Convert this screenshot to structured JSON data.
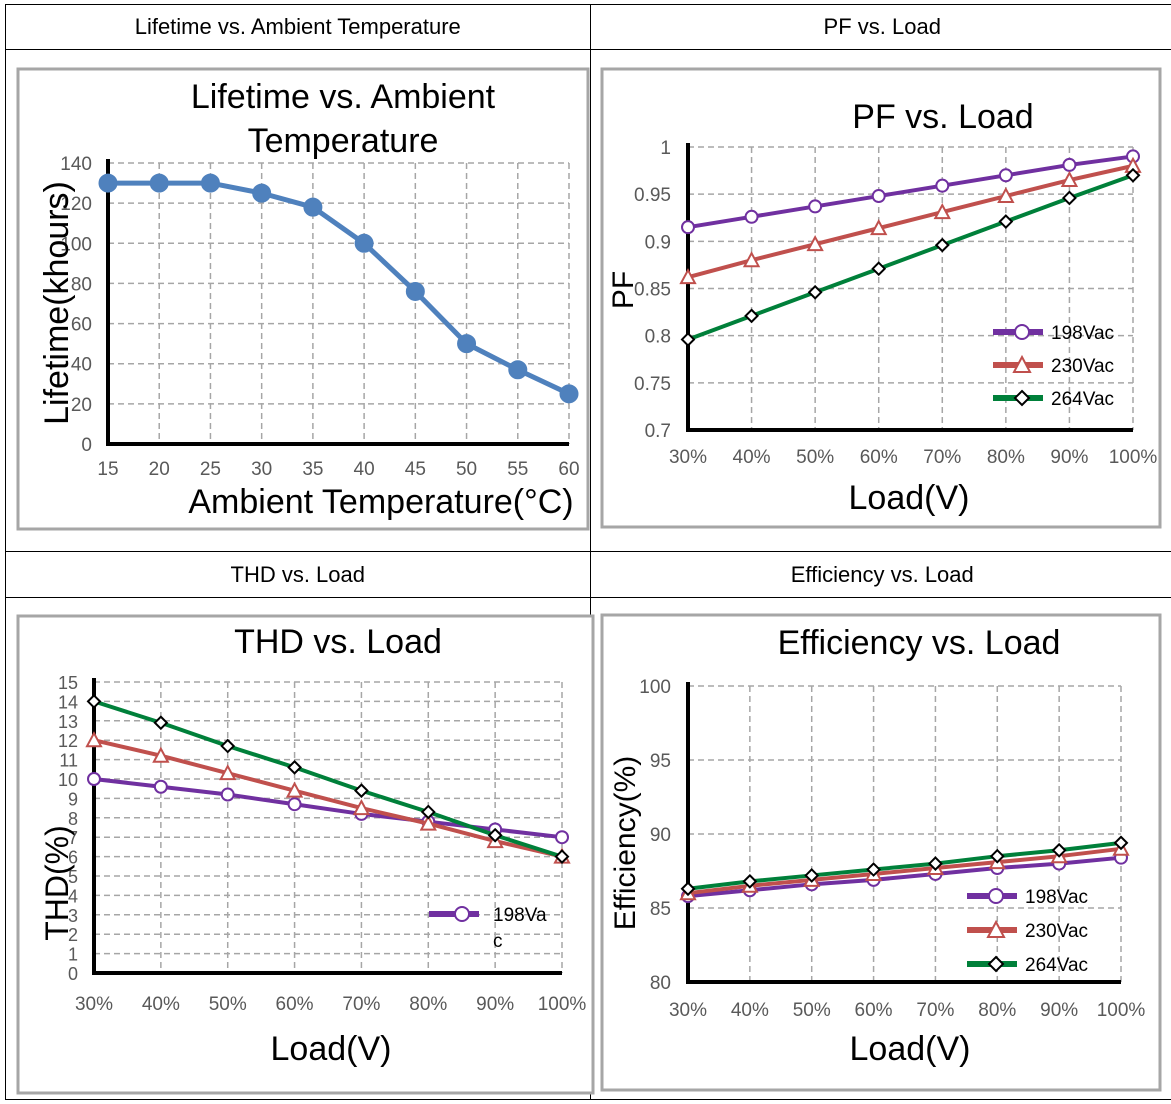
{
  "headers": {
    "lifetime": "Lifetime vs. Ambient Temperature",
    "pf": "PF vs. Load",
    "thd": "THD vs. Load",
    "efficiency": "Efficiency vs. Load"
  },
  "chart_data": [
    {
      "id": "lifetime",
      "type": "line",
      "title_lines": [
        "Lifetime vs. Ambient",
        "Temperature"
      ],
      "xlabel": "Ambient Temperature(°C)",
      "ylabel": "Lifetime(khours)",
      "x": [
        15,
        20,
        25,
        30,
        35,
        40,
        45,
        50,
        55,
        60
      ],
      "xlim": [
        15,
        60
      ],
      "ylim": [
        0,
        140
      ],
      "yticks": [
        "0",
        "20",
        "40",
        "60",
        "80",
        "100",
        "120",
        "140"
      ],
      "xticks": [
        "15",
        "20",
        "25",
        "30",
        "35",
        "40",
        "45",
        "50",
        "55",
        "60"
      ],
      "series": [
        {
          "values": [
            130,
            130,
            130,
            125,
            118,
            100,
            76,
            50,
            37,
            25
          ],
          "color": "#4f81bd",
          "marker": "circle-filled"
        }
      ],
      "grid": true
    },
    {
      "id": "pf",
      "type": "line",
      "title": "PF vs. Load",
      "xlabel": "Load(V)",
      "ylabel": "PF",
      "categories": [
        "30%",
        "40%",
        "50%",
        "60%",
        "70%",
        "80%",
        "90%",
        "100%"
      ],
      "ylim": [
        0.7,
        1
      ],
      "yticks": [
        "0.7",
        "0.75",
        "0.8",
        "0.85",
        "0.9",
        "0.95",
        "1"
      ],
      "series": [
        {
          "name": "198Vac",
          "values": [
            0.915,
            0.926,
            0.937,
            0.948,
            0.959,
            0.97,
            0.981,
            0.99
          ],
          "color": "#7030a0",
          "marker": "circle"
        },
        {
          "name": "230Vac",
          "values": [
            0.862,
            0.88,
            0.897,
            0.914,
            0.931,
            0.948,
            0.965,
            0.98
          ],
          "color": "#c0504d",
          "marker": "triangle"
        },
        {
          "name": "264Vac",
          "values": [
            0.796,
            0.821,
            0.846,
            0.871,
            0.896,
            0.921,
            0.946,
            0.97
          ],
          "color": "#00803a",
          "marker": "diamond"
        }
      ],
      "legend": "bottom-right",
      "grid": true
    },
    {
      "id": "thd",
      "type": "line",
      "title": "THD vs. Load",
      "xlabel": "Load(V)",
      "ylabel": "THD(%)",
      "categories": [
        "30%",
        "40%",
        "50%",
        "60%",
        "70%",
        "80%",
        "90%",
        "100%"
      ],
      "ylim": [
        0,
        15
      ],
      "yticks": [
        "0",
        "1",
        "2",
        "3",
        "4",
        "5",
        "6",
        "7",
        "8",
        "9",
        "10",
        "11",
        "12",
        "13",
        "14",
        "15"
      ],
      "series": [
        {
          "name": "198Vac",
          "values": [
            10,
            9.6,
            9.2,
            8.7,
            8.2,
            7.8,
            7.4,
            7.0
          ],
          "color": "#7030a0",
          "marker": "circle"
        },
        {
          "values": [
            12,
            11.2,
            10.3,
            9.4,
            8.5,
            7.7,
            6.8,
            6.0
          ],
          "color": "#c0504d",
          "marker": "triangle"
        },
        {
          "values": [
            14,
            12.9,
            11.7,
            10.6,
            9.4,
            8.3,
            7.1,
            6.0
          ],
          "color": "#00803a",
          "marker": "diamond"
        }
      ],
      "legend_lines": [
        "198Va",
        "c"
      ],
      "legend": "right",
      "grid": true
    },
    {
      "id": "efficiency",
      "type": "line",
      "title": "Efficiency vs. Load",
      "xlabel": "Load(V)",
      "ylabel": "Efficiency(%)",
      "categories": [
        "30%",
        "40%",
        "50%",
        "60%",
        "70%",
        "80%",
        "90%",
        "100%"
      ],
      "ylim": [
        80,
        100
      ],
      "yticks": [
        "80",
        "85",
        "90",
        "95",
        "100"
      ],
      "series": [
        {
          "name": "198Vac",
          "values": [
            85.8,
            86.2,
            86.6,
            86.9,
            87.3,
            87.7,
            88.0,
            88.4
          ],
          "color": "#7030a0",
          "marker": "circle"
        },
        {
          "name": "230Vac",
          "values": [
            86.0,
            86.5,
            86.9,
            87.3,
            87.7,
            88.1,
            88.5,
            89.0
          ],
          "color": "#c0504d",
          "marker": "triangle"
        },
        {
          "name": "264Vac",
          "values": [
            86.3,
            86.8,
            87.2,
            87.6,
            88.0,
            88.5,
            88.9,
            89.4
          ],
          "color": "#00803a",
          "marker": "diamond"
        }
      ],
      "legend": "bottom-right",
      "grid": true
    }
  ]
}
